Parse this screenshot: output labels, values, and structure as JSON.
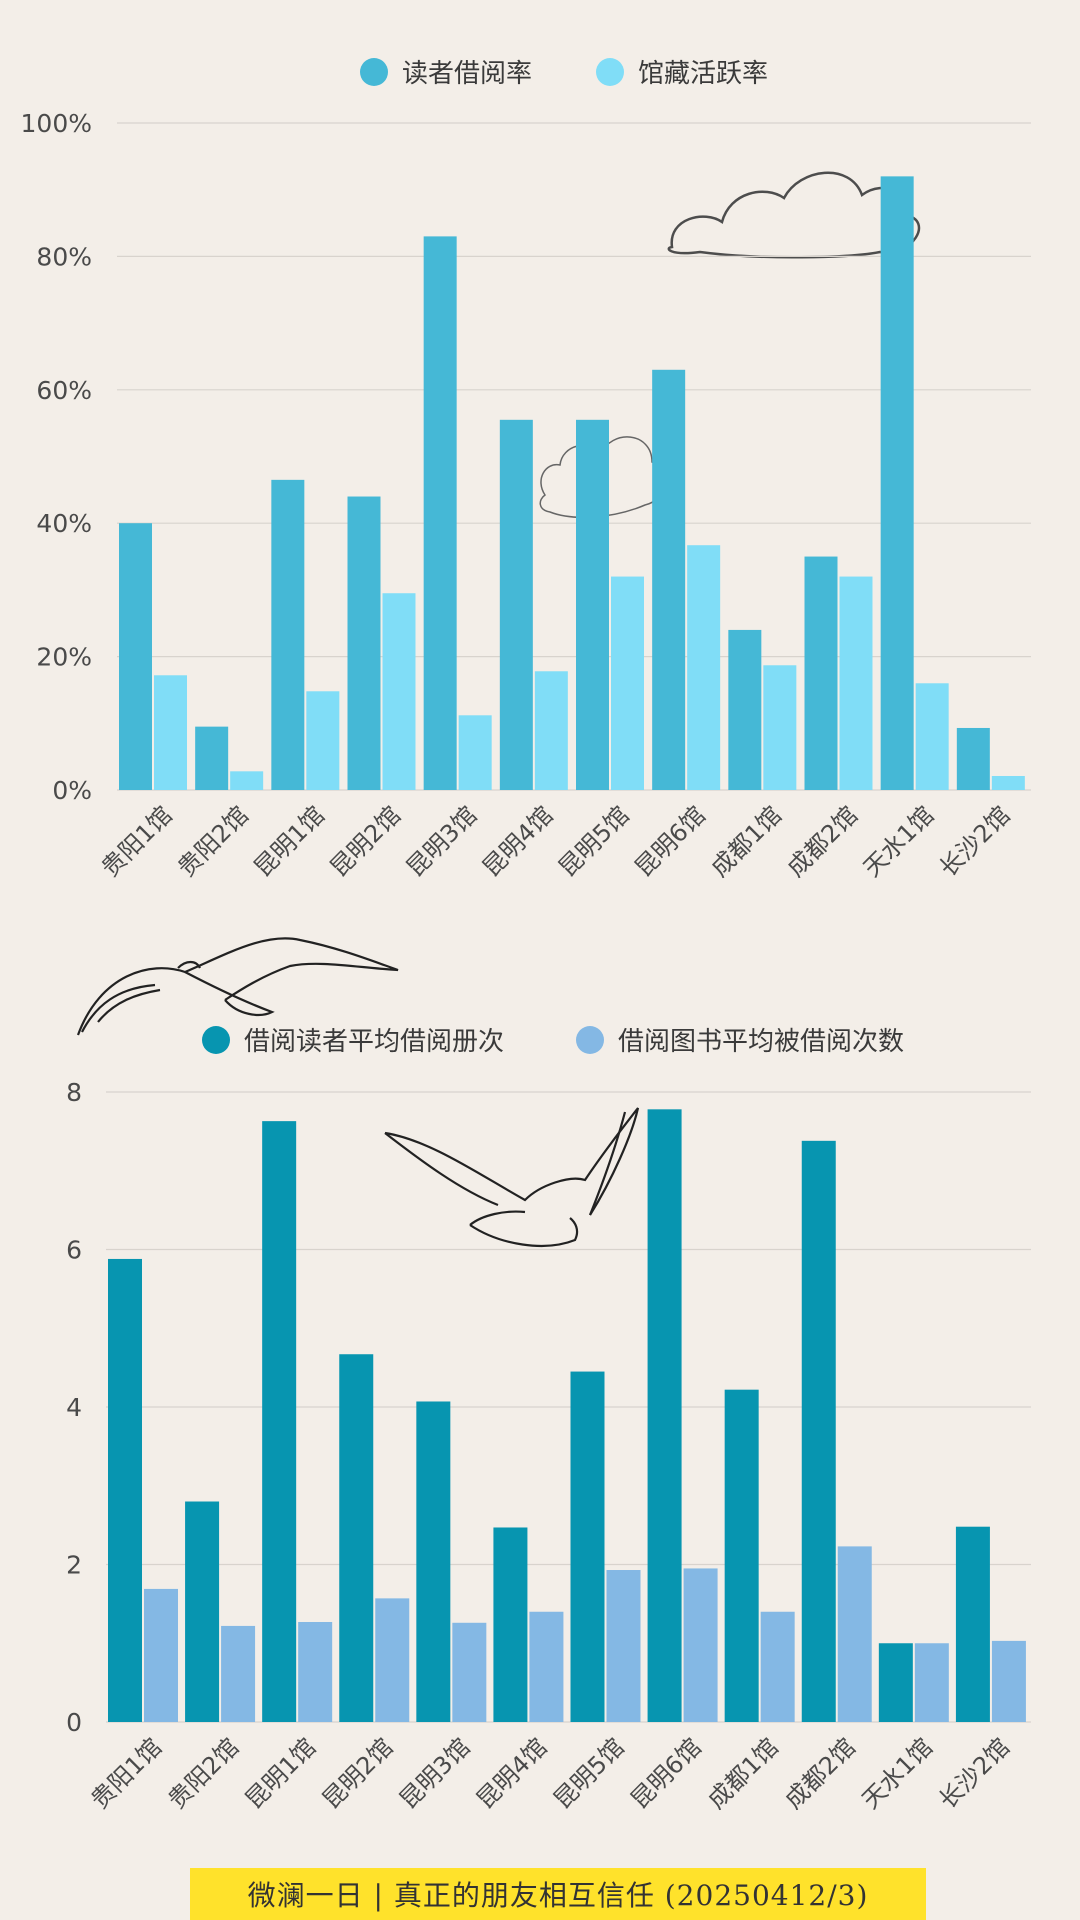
{
  "colors": {
    "background": "#f3eee8",
    "chart1_series1": "#45b8d6",
    "chart1_series2": "#80ddf7",
    "chart2_series1": "#0795b0",
    "chart2_series2": "#84b8e4",
    "grid": "#d8d3cd",
    "footer_bg": "#ffe22b"
  },
  "chart_data": [
    {
      "type": "bar",
      "categories": [
        "贵阳1馆",
        "贵阳2馆",
        "昆明1馆",
        "昆明2馆",
        "昆明3馆",
        "昆明4馆",
        "昆明5馆",
        "昆明6馆",
        "成都1馆",
        "成都2馆",
        "天水1馆",
        "长沙2馆"
      ],
      "series": [
        {
          "name": "读者借阅率",
          "values": [
            40,
            9.5,
            46.5,
            44,
            83,
            55.5,
            55.5,
            63,
            24,
            35,
            92,
            9.3
          ]
        },
        {
          "name": "馆藏活跃率",
          "values": [
            17.2,
            2.8,
            14.8,
            29.5,
            11.2,
            17.8,
            32,
            36.7,
            18.7,
            32,
            16,
            2.1
          ]
        }
      ],
      "ylim": [
        0,
        100
      ],
      "yticks": [
        0,
        20,
        40,
        60,
        80,
        100
      ],
      "ytick_labels": [
        "0%",
        "20%",
        "40%",
        "60%",
        "80%",
        "100%"
      ],
      "legend_position": "top-center",
      "grid": true
    },
    {
      "type": "bar",
      "categories": [
        "贵阳1馆",
        "贵阳2馆",
        "昆明1馆",
        "昆明2馆",
        "昆明3馆",
        "昆明4馆",
        "昆明5馆",
        "昆明6馆",
        "成都1馆",
        "成都2馆",
        "天水1馆",
        "长沙2馆"
      ],
      "series": [
        {
          "name": "借阅读者平均借阅册次",
          "values": [
            5.88,
            2.8,
            7.63,
            4.67,
            4.07,
            2.47,
            4.45,
            7.78,
            4.22,
            7.38,
            1.0,
            2.48
          ]
        },
        {
          "name": "借阅图书平均被借阅次数",
          "values": [
            1.69,
            1.22,
            1.27,
            1.57,
            1.26,
            1.4,
            1.93,
            1.95,
            1.4,
            2.23,
            1.0,
            1.03
          ]
        }
      ],
      "ylim": [
        0,
        8
      ],
      "yticks": [
        0,
        2,
        4,
        6,
        8
      ],
      "ytick_labels": [
        "0",
        "2",
        "4",
        "6",
        "8"
      ],
      "legend_position": "top-center",
      "grid": true
    }
  ],
  "footer": {
    "text": "微澜一日 | 真正的朋友相互信任 (20250412/3)"
  }
}
